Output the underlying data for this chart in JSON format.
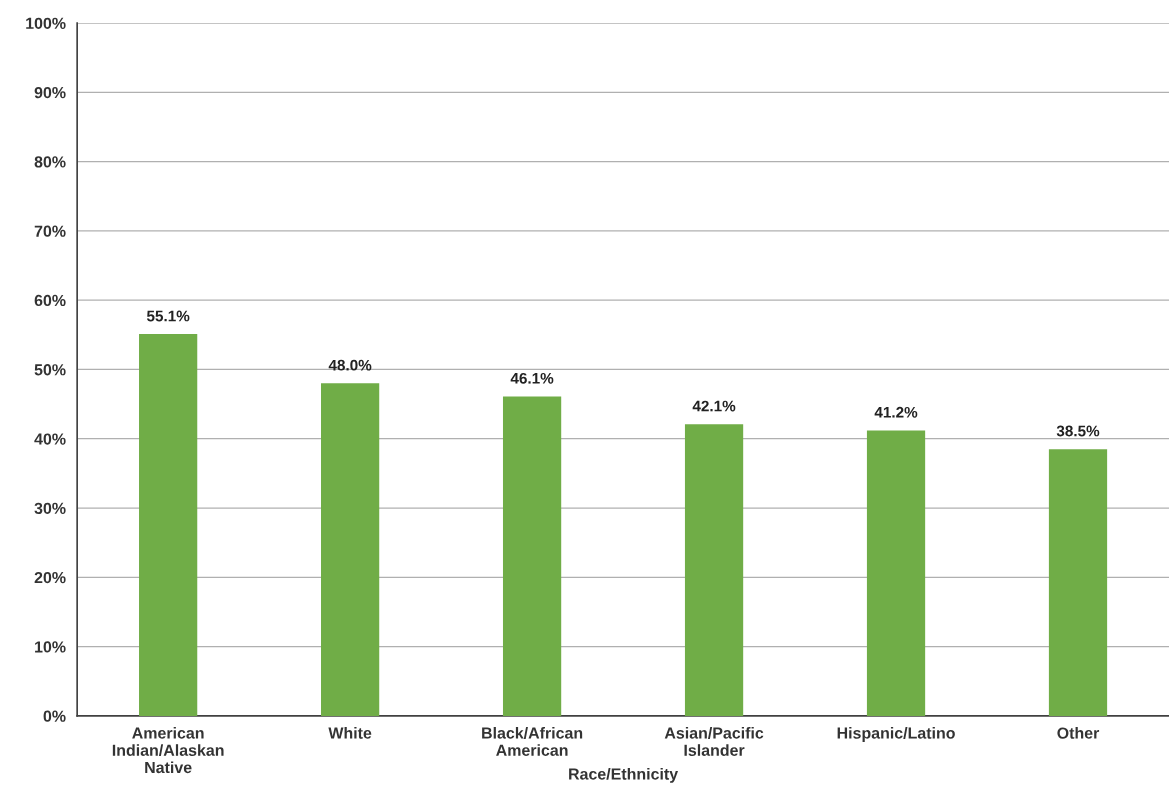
{
  "chart_data": {
    "type": "bar",
    "xlabel": "Race/Ethnicity",
    "categories": [
      "American\nIndian/Alaskan\nNative",
      "White",
      "Black/African\nAmerican",
      "Asian/Pacific\nIslander",
      "Hispanic/Latino",
      "Other"
    ],
    "values": [
      55.1,
      48.0,
      46.1,
      42.1,
      41.2,
      38.5
    ],
    "value_labels": [
      "55.1%",
      "48.0%",
      "46.1%",
      "42.1%",
      "41.2%",
      "38.5%"
    ],
    "color": "#70ad47",
    "ylim": [
      0,
      100
    ],
    "yticks": [
      {
        "value": 0,
        "label": "0%"
      },
      {
        "value": 10,
        "label": "10%"
      },
      {
        "value": 20,
        "label": "20%"
      },
      {
        "value": 30,
        "label": "30%"
      },
      {
        "value": 40,
        "label": "40%"
      },
      {
        "value": 50,
        "label": "50%"
      },
      {
        "value": 60,
        "label": "60%"
      },
      {
        "value": 70,
        "label": "70%"
      },
      {
        "value": 80,
        "label": "80%"
      },
      {
        "value": 90,
        "label": "90%"
      },
      {
        "value": 100,
        "label": "100%"
      }
    ],
    "grid": "y",
    "legend": false
  }
}
